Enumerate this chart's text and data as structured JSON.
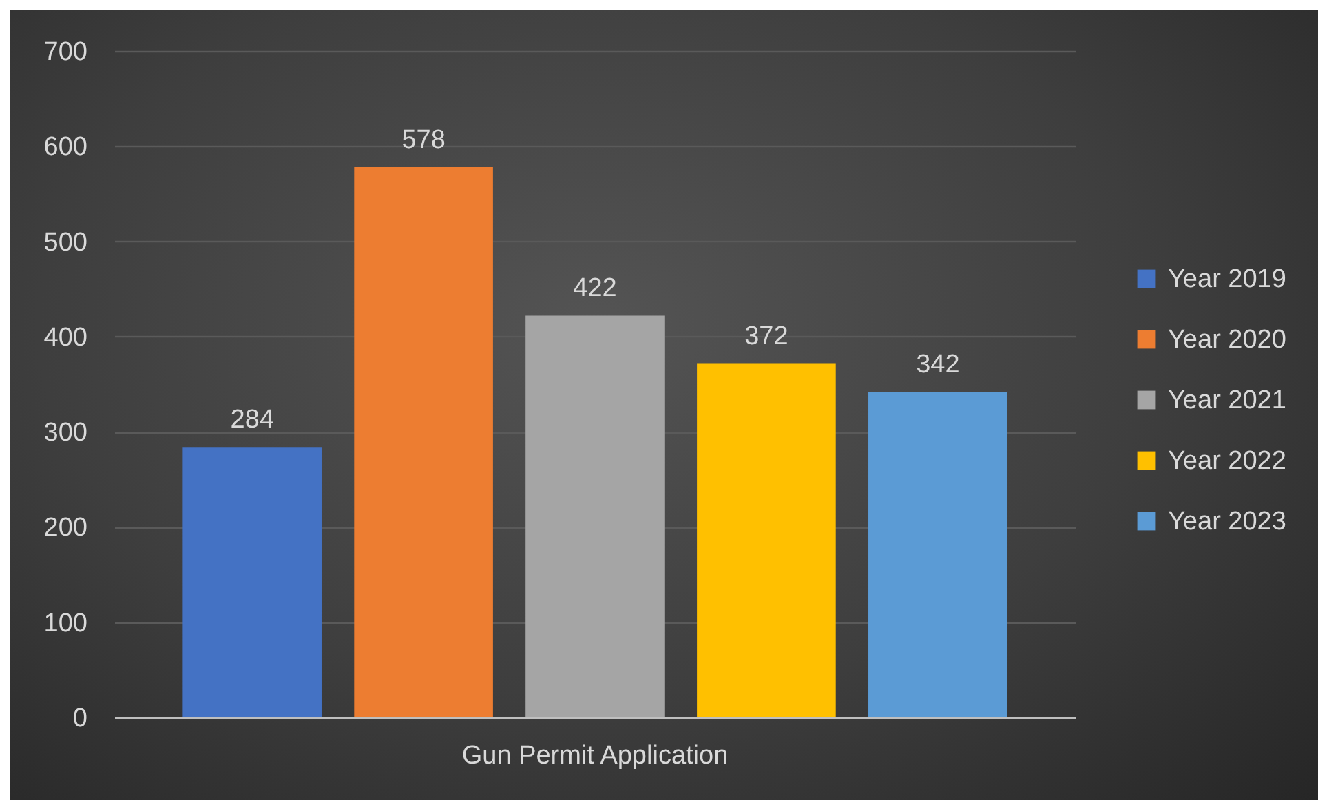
{
  "chart_data": {
    "type": "bar",
    "categories": [
      "Gun Permit Application"
    ],
    "series": [
      {
        "name": "Year 2019",
        "color": "#4472c4",
        "values": [
          284
        ]
      },
      {
        "name": "Year 2020",
        "color": "#ed7d31",
        "values": [
          578
        ]
      },
      {
        "name": "Year 2021",
        "color": "#a5a5a5",
        "values": [
          422
        ]
      },
      {
        "name": "Year 2022",
        "color": "#ffc000",
        "values": [
          372
        ]
      },
      {
        "name": "Year 2023",
        "color": "#5b9bd5",
        "values": [
          342
        ]
      }
    ],
    "ylim": [
      0,
      700
    ],
    "yticks": [
      0,
      100,
      200,
      300,
      400,
      500,
      600,
      700
    ],
    "grid": "y",
    "legend": "right",
    "data_labels": true
  }
}
